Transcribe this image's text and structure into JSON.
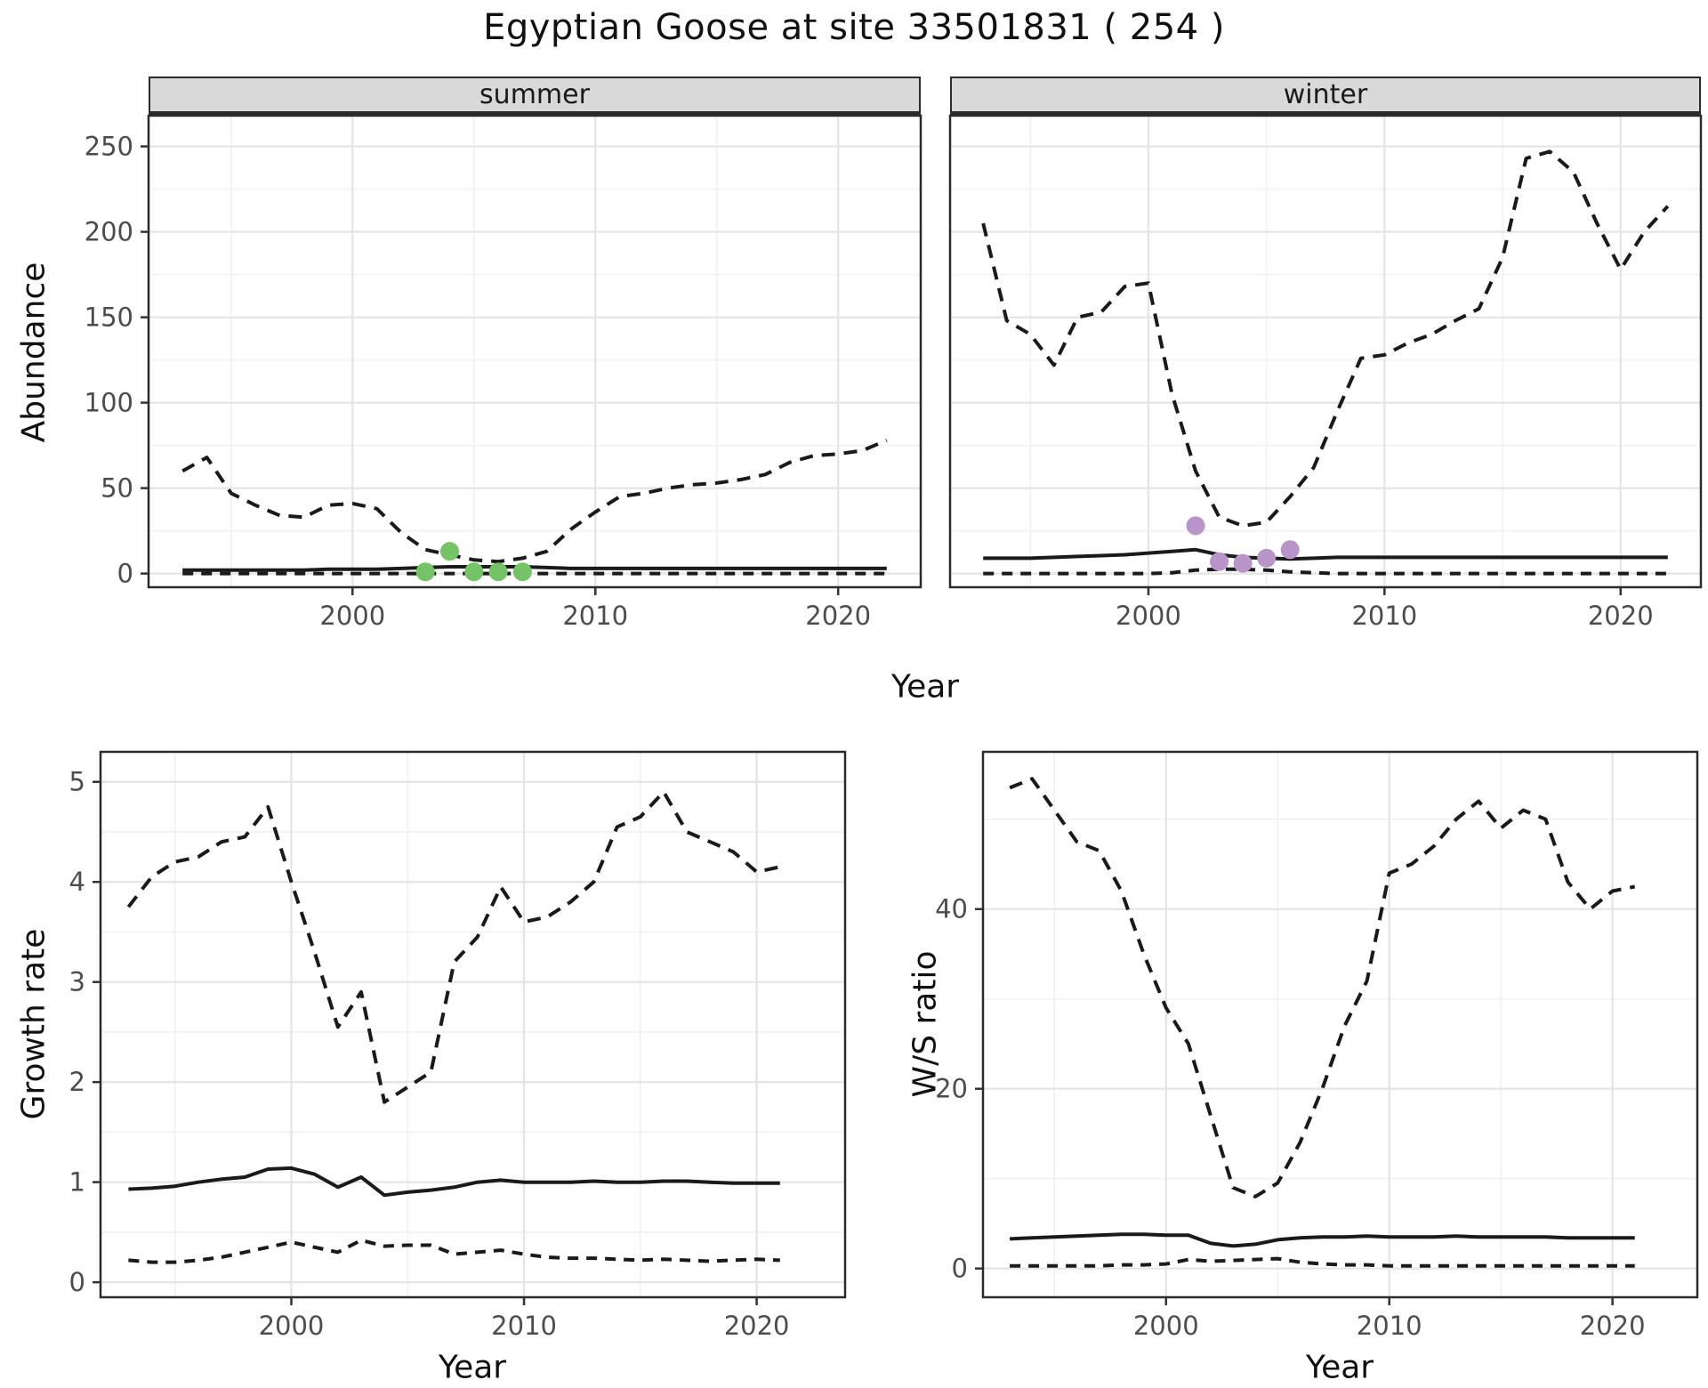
{
  "title": "Egyptian Goose at site 33501831 ( 254 )",
  "colors": {
    "summer_points": "#74c366",
    "winter_points": "#b894c8",
    "line": "#1a1a1a",
    "grid_major": "#e4e4e4",
    "grid_minor": "#f1f1f1",
    "strip_bg": "#d9d9d9",
    "tick_text": "#4d4d4d",
    "border": "#2b2b2b"
  },
  "chart_data": {
    "type": "line",
    "figure_title": "Egyptian Goose at site 33501831 ( 254 )",
    "shared_x_label": "Year",
    "shared_y_label_top": "Abundance",
    "facets": [
      "summer",
      "winter"
    ],
    "legend_position": "none",
    "grid": "on",
    "panels": [
      {
        "id": "summer",
        "facet_label": "summer",
        "y_axis_label": "Abundance",
        "x_axis_label": "Year",
        "xlim": [
          1991.6,
          2023.4
        ],
        "ylim": [
          -8,
          268
        ],
        "xticks": [
          2000,
          2010,
          2020
        ],
        "xtick_labels": [
          "2000",
          "2010",
          "2020"
        ],
        "yticks": [
          0,
          50,
          100,
          150,
          200,
          250
        ],
        "ytick_labels": [
          "0",
          "50",
          "100",
          "150",
          "200",
          "250"
        ],
        "minor_xticks": [
          1995,
          2005,
          2015
        ],
        "minor_yticks": [
          25,
          75,
          125,
          175,
          225
        ],
        "show_y_tick_labels": true,
        "x": [
          1993,
          1994,
          1995,
          1996,
          1997,
          1998,
          1999,
          2000,
          2001,
          2002,
          2003,
          2004,
          2005,
          2006,
          2007,
          2008,
          2009,
          2010,
          2011,
          2012,
          2013,
          2014,
          2015,
          2016,
          2017,
          2018,
          2019,
          2020,
          2021,
          2022
        ],
        "series": [
          {
            "name": "upper_ci",
            "style": "dashed",
            "values": [
              60,
              68,
              47,
              40,
              34,
              33,
              40,
              41,
              38,
              24,
              14,
              11,
              8,
              7,
              9,
              13,
              26,
              36,
              45,
              47,
              50,
              52,
              53,
              55,
              58,
              65,
              69,
              70,
              72,
              78
            ]
          },
          {
            "name": "median",
            "style": "solid",
            "values": [
              2,
              2,
              2,
              2,
              2,
              2,
              2.5,
              2.5,
              2.5,
              3,
              3.5,
              4,
              4,
              4,
              4,
              3.5,
              3,
              3,
              3,
              3,
              3,
              3,
              3,
              3,
              3,
              3,
              3,
              3,
              3,
              3
            ]
          },
          {
            "name": "lower_ci",
            "style": "dashed",
            "values": [
              0,
              0,
              0,
              0,
              0,
              0,
              0,
              0,
              0,
              0,
              0,
              0,
              0,
              0,
              0,
              0,
              0,
              0,
              0,
              0,
              0,
              0,
              0,
              0,
              0,
              0,
              0,
              0,
              0,
              0
            ]
          }
        ],
        "points": {
          "name": "observed-summer-counts",
          "color_key": "summer_points",
          "data": [
            [
              2003,
              1
            ],
            [
              2004,
              13
            ],
            [
              2005,
              1
            ],
            [
              2006,
              1
            ],
            [
              2007,
              1
            ]
          ]
        }
      },
      {
        "id": "winter",
        "facet_label": "winter",
        "y_axis_label": "Abundance",
        "x_axis_label": "Year",
        "xlim": [
          1991.6,
          2023.4
        ],
        "ylim": [
          -8,
          268
        ],
        "xticks": [
          2000,
          2010,
          2020
        ],
        "xtick_labels": [
          "2000",
          "2010",
          "2020"
        ],
        "yticks": [
          0,
          50,
          100,
          150,
          200,
          250
        ],
        "ytick_labels": [
          "0",
          "50",
          "100",
          "150",
          "200",
          "250"
        ],
        "minor_xticks": [
          1995,
          2005,
          2015
        ],
        "minor_yticks": [
          25,
          75,
          125,
          175,
          225
        ],
        "show_y_tick_labels": false,
        "x": [
          1993,
          1994,
          1995,
          1996,
          1997,
          1998,
          1999,
          2000,
          2001,
          2002,
          2003,
          2004,
          2005,
          2006,
          2007,
          2008,
          2009,
          2010,
          2011,
          2012,
          2013,
          2014,
          2015,
          2016,
          2017,
          2018,
          2019,
          2020,
          2021,
          2022
        ],
        "series": [
          {
            "name": "upper_ci",
            "style": "dashed",
            "values": [
              205,
              148,
              140,
              122,
              150,
              153,
              168,
              170,
              105,
              60,
              33,
              28,
              30,
              45,
              62,
              95,
              126,
              128,
              135,
              140,
              148,
              155,
              185,
              243,
              247,
              235,
              205,
              178,
              200,
              215
            ]
          },
          {
            "name": "median",
            "style": "solid",
            "values": [
              9,
              9,
              9,
              9.5,
              10,
              10.5,
              11,
              12,
              13,
              14,
              11,
              9.5,
              9,
              8.5,
              9,
              9.5,
              9.5,
              9.5,
              9.5,
              9.5,
              9.5,
              9.5,
              9.5,
              9.5,
              9.5,
              9.5,
              9.5,
              9.5,
              9.5,
              9.5
            ]
          },
          {
            "name": "lower_ci",
            "style": "dashed",
            "values": [
              0,
              0,
              0,
              0,
              0,
              0,
              0,
              0,
              0.5,
              2,
              2.5,
              2.5,
              2,
              1,
              0.5,
              0,
              0,
              0,
              0,
              0,
              0,
              0,
              0,
              0,
              0,
              0,
              0,
              0,
              0,
              0
            ]
          }
        ],
        "points": {
          "name": "observed-winter-counts",
          "color_key": "winter_points",
          "data": [
            [
              2002,
              28
            ],
            [
              2003,
              7
            ],
            [
              2004,
              6
            ],
            [
              2005,
              9
            ],
            [
              2006,
              14
            ]
          ]
        }
      },
      {
        "id": "growth",
        "facet_label": "",
        "y_axis_label": "Growth rate",
        "x_axis_label": "Year",
        "xlim": [
          1991.8,
          2023.8
        ],
        "ylim": [
          -0.15,
          5.3
        ],
        "xticks": [
          2000,
          2010,
          2020
        ],
        "xtick_labels": [
          "2000",
          "2010",
          "2020"
        ],
        "yticks": [
          0,
          1,
          2,
          3,
          4,
          5
        ],
        "ytick_labels": [
          "0",
          "1",
          "2",
          "3",
          "4",
          "5"
        ],
        "minor_xticks": [
          1995,
          2005,
          2015
        ],
        "minor_yticks": [
          0.5,
          1.5,
          2.5,
          3.5,
          4.5
        ],
        "show_y_tick_labels": true,
        "x": [
          1993,
          1994,
          1995,
          1996,
          1997,
          1998,
          1999,
          2000,
          2001,
          2002,
          2003,
          2004,
          2005,
          2006,
          2007,
          2008,
          2009,
          2010,
          2011,
          2012,
          2013,
          2014,
          2015,
          2016,
          2017,
          2018,
          2019,
          2020,
          2021
        ],
        "series": [
          {
            "name": "upper_ci",
            "style": "dashed",
            "values": [
              3.75,
              4.05,
              4.2,
              4.25,
              4.4,
              4.45,
              4.75,
              4.0,
              3.3,
              2.55,
              2.9,
              1.8,
              1.95,
              2.1,
              3.2,
              3.45,
              3.95,
              3.6,
              3.65,
              3.8,
              4.0,
              4.55,
              4.65,
              4.9,
              4.5,
              4.4,
              4.3,
              4.1,
              4.15
            ]
          },
          {
            "name": "median",
            "style": "solid",
            "values": [
              0.93,
              0.94,
              0.96,
              1.0,
              1.03,
              1.05,
              1.13,
              1.14,
              1.08,
              0.95,
              1.05,
              0.87,
              0.9,
              0.92,
              0.95,
              1.0,
              1.02,
              1.0,
              1.0,
              1.0,
              1.01,
              1.0,
              1.0,
              1.01,
              1.01,
              1.0,
              0.99,
              0.99,
              0.99
            ]
          },
          {
            "name": "lower_ci",
            "style": "dashed",
            "values": [
              0.22,
              0.2,
              0.2,
              0.22,
              0.25,
              0.3,
              0.35,
              0.4,
              0.35,
              0.3,
              0.42,
              0.36,
              0.37,
              0.37,
              0.28,
              0.3,
              0.32,
              0.28,
              0.25,
              0.24,
              0.24,
              0.23,
              0.22,
              0.23,
              0.22,
              0.21,
              0.22,
              0.23,
              0.22
            ]
          }
        ],
        "points": null
      },
      {
        "id": "ws_ratio",
        "facet_label": "",
        "y_axis_label": "W/S ratio",
        "x_axis_label": "Year",
        "xlim": [
          1991.8,
          2023.8
        ],
        "ylim": [
          -3.2,
          57.5
        ],
        "xticks": [
          2000,
          2010,
          2020
        ],
        "xtick_labels": [
          "2000",
          "2010",
          "2020"
        ],
        "yticks": [
          0,
          20,
          40
        ],
        "ytick_labels": [
          "0",
          "20",
          "40"
        ],
        "minor_xticks": [
          1995,
          2005,
          2015
        ],
        "minor_yticks": [
          10,
          30,
          50
        ],
        "show_y_tick_labels": true,
        "x": [
          1993,
          1994,
          1995,
          1996,
          1997,
          1998,
          1999,
          2000,
          2001,
          2002,
          2003,
          2004,
          2005,
          2006,
          2007,
          2008,
          2009,
          2010,
          2011,
          2012,
          2013,
          2014,
          2015,
          2016,
          2017,
          2018,
          2019,
          2020,
          2021
        ],
        "series": [
          {
            "name": "upper_ci",
            "style": "dashed",
            "values": [
              53.5,
              54.5,
              51,
              47.5,
              46.5,
              42,
              35,
              29,
              25,
              17,
              9,
              8,
              9.5,
              14,
              20,
              27,
              32,
              44,
              45,
              47,
              50,
              52,
              49,
              51,
              50,
              43,
              40,
              42,
              42.5
            ]
          },
          {
            "name": "median",
            "style": "solid",
            "values": [
              3.3,
              3.4,
              3.5,
              3.6,
              3.7,
              3.8,
              3.8,
              3.7,
              3.7,
              2.8,
              2.5,
              2.7,
              3.2,
              3.4,
              3.5,
              3.5,
              3.6,
              3.5,
              3.5,
              3.5,
              3.6,
              3.5,
              3.5,
              3.5,
              3.5,
              3.4,
              3.4,
              3.4,
              3.4
            ]
          },
          {
            "name": "lower_ci",
            "style": "dashed",
            "values": [
              0.3,
              0.3,
              0.3,
              0.3,
              0.3,
              0.4,
              0.4,
              0.5,
              1.0,
              0.8,
              0.9,
              1.0,
              1.1,
              0.7,
              0.5,
              0.4,
              0.4,
              0.3,
              0.3,
              0.3,
              0.3,
              0.3,
              0.3,
              0.3,
              0.3,
              0.3,
              0.3,
              0.3,
              0.3
            ]
          }
        ],
        "points": null
      }
    ]
  }
}
